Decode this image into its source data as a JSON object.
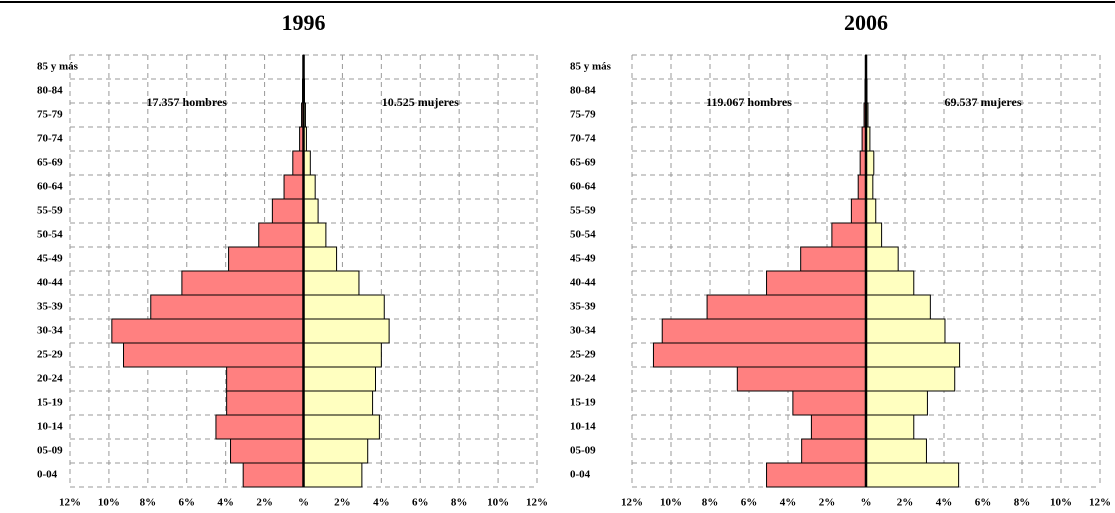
{
  "chart_data": [
    {
      "type": "pyramid",
      "title": "1996",
      "categories": [
        "0-04",
        "05-09",
        "10-14",
        "15-19",
        "20-24",
        "25-29",
        "30-34",
        "35-39",
        "40-44",
        "45-49",
        "50-54",
        "55-59",
        "60-64",
        "65-69",
        "70-74",
        "75-79",
        "80-84",
        "85 y más"
      ],
      "series": [
        {
          "color": "#ff8080",
          "values": [
            3.1,
            3.75,
            4.5,
            3.95,
            3.95,
            9.25,
            9.85,
            7.85,
            6.25,
            3.85,
            2.3,
            1.6,
            1.0,
            0.55,
            0.2,
            0.1,
            0.05,
            0.02
          ]
        },
        {
          "color": "#ffffc0",
          "values": [
            3.0,
            3.3,
            3.9,
            3.55,
            3.7,
            4.0,
            4.4,
            4.15,
            2.85,
            1.7,
            1.15,
            0.75,
            0.6,
            0.35,
            0.15,
            0.1,
            0.05,
            0.03
          ]
        }
      ],
      "annotations": [
        "17.357 hombres",
        "10.525 mujeres"
      ],
      "xlim": [
        -12,
        12
      ],
      "xticks": [
        {
          "value": -12,
          "label": "12%"
        },
        {
          "value": -10,
          "label": "10%"
        },
        {
          "value": -8,
          "label": "8%"
        },
        {
          "value": -6,
          "label": "6%"
        },
        {
          "value": -4,
          "label": "4%"
        },
        {
          "value": -2,
          "label": "2%"
        },
        {
          "value": 0,
          "label": "%"
        },
        {
          "value": 2,
          "label": "2%"
        },
        {
          "value": 4,
          "label": "4%"
        },
        {
          "value": 6,
          "label": "6%"
        },
        {
          "value": 8,
          "label": "8%"
        },
        {
          "value": 10,
          "label": "10%"
        },
        {
          "value": 12,
          "label": "12%"
        }
      ],
      "grid": true
    },
    {
      "type": "pyramid",
      "title": "2006",
      "categories": [
        "0-04",
        "05-09",
        "10-14",
        "15-19",
        "20-24",
        "25-29",
        "30-34",
        "35-39",
        "40-44",
        "45-49",
        "50-54",
        "55-59",
        "60-64",
        "65-69",
        "70-74",
        "75-79",
        "80-84",
        "85 y más"
      ],
      "series": [
        {
          "color": "#ff8080",
          "values": [
            5.1,
            3.3,
            2.8,
            3.75,
            6.6,
            10.9,
            10.45,
            8.15,
            5.1,
            3.35,
            1.75,
            0.75,
            0.4,
            0.3,
            0.2,
            0.1,
            0.05,
            0.02
          ]
        },
        {
          "color": "#ffffc0",
          "values": [
            4.75,
            3.1,
            2.45,
            3.15,
            4.55,
            4.8,
            4.05,
            3.3,
            2.45,
            1.65,
            0.8,
            0.5,
            0.35,
            0.4,
            0.2,
            0.1,
            0.05,
            0.02
          ]
        }
      ],
      "annotations": [
        "119.067 hombres",
        "69.537 mujeres"
      ],
      "xlim": [
        -12,
        12
      ],
      "xticks": [
        {
          "value": -12,
          "label": "12%"
        },
        {
          "value": -10,
          "label": "10%"
        },
        {
          "value": -8,
          "label": "8%"
        },
        {
          "value": -6,
          "label": "6%"
        },
        {
          "value": -4,
          "label": "4%"
        },
        {
          "value": -2,
          "label": "2%"
        },
        {
          "value": 0,
          "label": "%"
        },
        {
          "value": 2,
          "label": "2%"
        },
        {
          "value": 4,
          "label": "4%"
        },
        {
          "value": 6,
          "label": "6%"
        },
        {
          "value": 8,
          "label": "8%"
        },
        {
          "value": 10,
          "label": "10%"
        },
        {
          "value": 12,
          "label": "12%"
        }
      ],
      "grid": true
    }
  ]
}
